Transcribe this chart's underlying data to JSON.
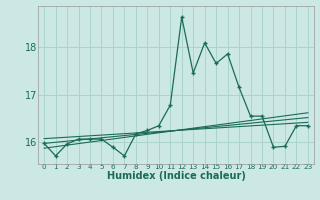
{
  "xlabel": "Humidex (Indice chaleur)",
  "background_color": "#cce8e4",
  "grid_color": "#aad4cf",
  "line_color": "#1a6b5a",
  "xlim": [
    -0.5,
    23.5
  ],
  "ylim": [
    15.55,
    18.85
  ],
  "yticks": [
    16,
    17,
    18
  ],
  "xticks": [
    0,
    1,
    2,
    3,
    4,
    5,
    6,
    7,
    8,
    9,
    10,
    11,
    12,
    13,
    14,
    15,
    16,
    17,
    18,
    19,
    20,
    21,
    22,
    23
  ],
  "main_x": [
    0,
    1,
    2,
    3,
    4,
    5,
    6,
    7,
    8,
    9,
    10,
    11,
    12,
    13,
    14,
    15,
    16,
    17,
    18,
    19,
    20,
    21,
    22,
    23
  ],
  "main_y": [
    15.98,
    15.72,
    15.97,
    16.07,
    16.07,
    16.07,
    15.9,
    15.72,
    16.18,
    16.25,
    16.35,
    16.78,
    18.62,
    17.45,
    18.08,
    17.65,
    17.85,
    17.15,
    16.55,
    16.55,
    15.9,
    15.92,
    16.35,
    16.35
  ],
  "line1_x": [
    0,
    23
  ],
  "line1_y": [
    15.98,
    16.52
  ],
  "line2_x": [
    0,
    23
  ],
  "line2_y": [
    15.88,
    16.62
  ],
  "line3_x": [
    0,
    23
  ],
  "line3_y": [
    16.08,
    16.42
  ],
  "xlabel_fontsize": 7,
  "ytick_fontsize": 7,
  "xtick_fontsize": 5.2
}
